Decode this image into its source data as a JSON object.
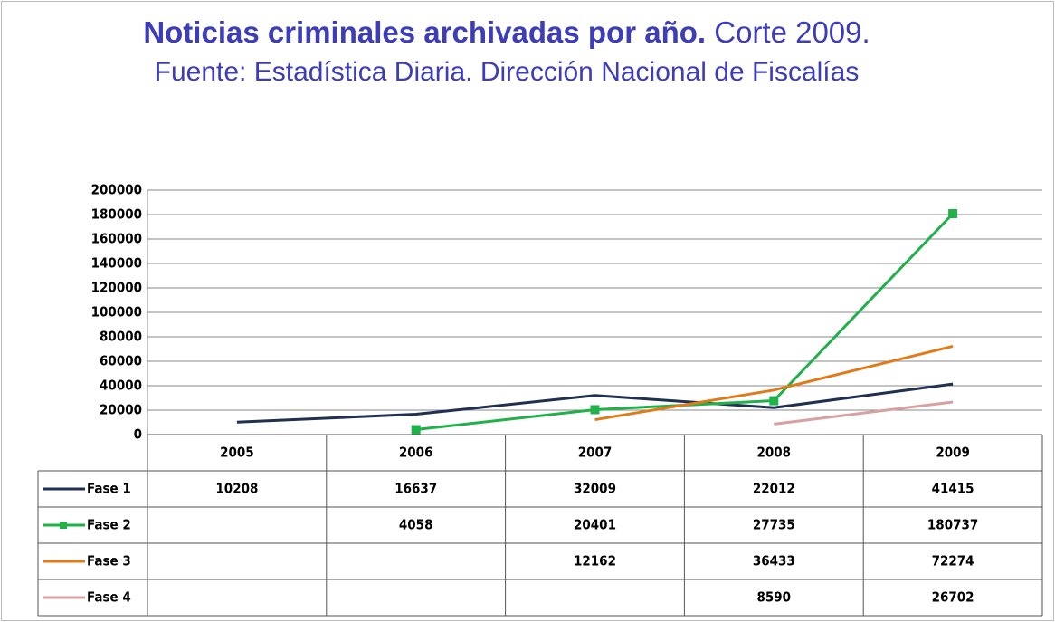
{
  "chart_data": {
    "type": "line",
    "title": "Noticias criminales archivadas por año.",
    "note": "Corte 2009.",
    "source": "Fuente:  Estadística Diaria. Dirección Nacional de Fiscalías",
    "categories": [
      "2005",
      "2006",
      "2007",
      "2008",
      "2009"
    ],
    "series": [
      {
        "name": "Fase 1",
        "color": "#1f3050",
        "values": [
          10208,
          16637,
          32009,
          22012,
          41415
        ]
      },
      {
        "name": "Fase 2",
        "color": "#22b04a",
        "marker": "square",
        "values": [
          null,
          4058,
          20401,
          27735,
          180737
        ]
      },
      {
        "name": "Fase 3",
        "color": "#e07b1a",
        "values": [
          null,
          null,
          12162,
          36433,
          72274
        ]
      },
      {
        "name": "Fase 4",
        "color": "#d9a0a0",
        "values": [
          null,
          null,
          null,
          8590,
          26702
        ]
      }
    ],
    "ylim": [
      0,
      200000
    ],
    "yticks": [
      0,
      20000,
      40000,
      60000,
      80000,
      100000,
      120000,
      140000,
      160000,
      180000,
      200000
    ],
    "grid": true
  }
}
